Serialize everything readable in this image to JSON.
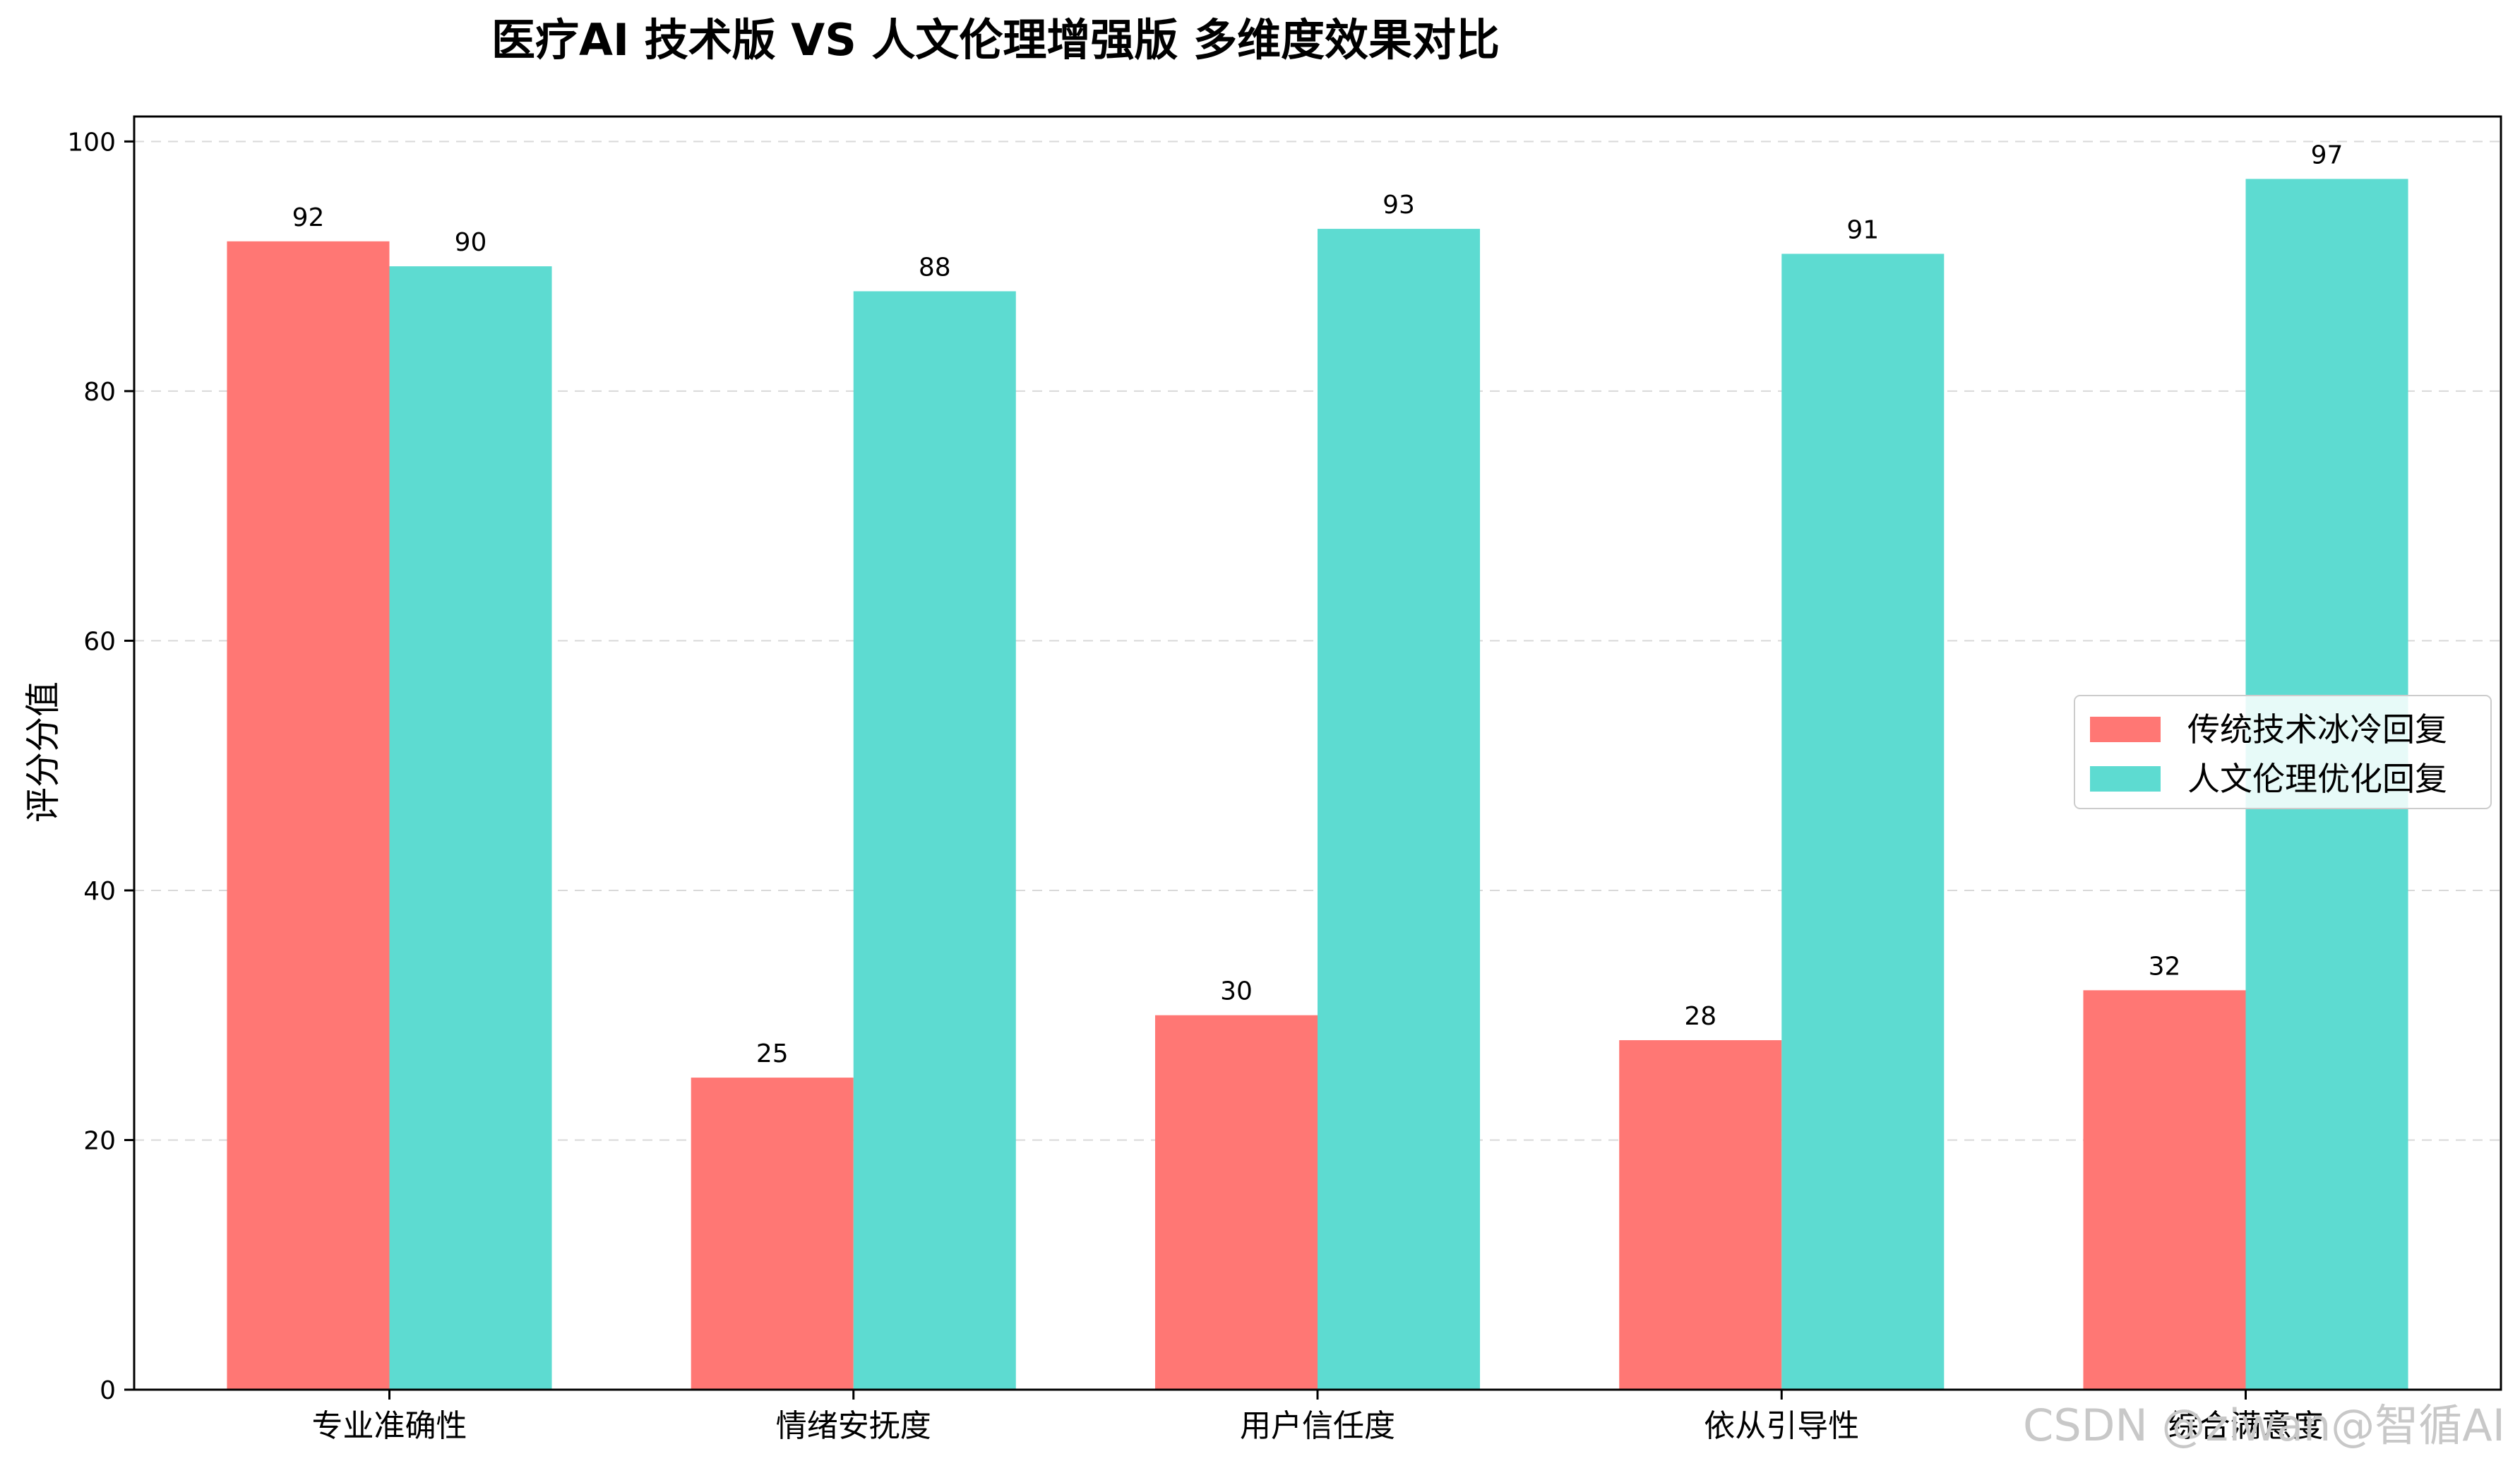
{
  "chart_data": {
    "type": "bar",
    "title": "医疗AI 技术版 VS 人文伦理增强版 多维度效果对比",
    "xlabel": "",
    "ylabel": "评分分值",
    "ylim": [
      0,
      102
    ],
    "yticks": [
      0,
      20,
      40,
      60,
      80,
      100
    ],
    "grid": "horizontal-dashed",
    "legend_position": "center-right",
    "categories": [
      "专业准确性",
      "情绪安抚度",
      "用户信任度",
      "依从引导性",
      "综合满意度"
    ],
    "series": [
      {
        "name": "传统技术冰冷回复",
        "color": "#ff7774",
        "values": [
          92,
          25,
          30,
          28,
          32
        ]
      },
      {
        "name": "人文伦理优化回复",
        "color": "#5ddbd1",
        "values": [
          90,
          88,
          93,
          91,
          97
        ]
      }
    ]
  },
  "watermark": "CSDN @ziwan@智循AI"
}
